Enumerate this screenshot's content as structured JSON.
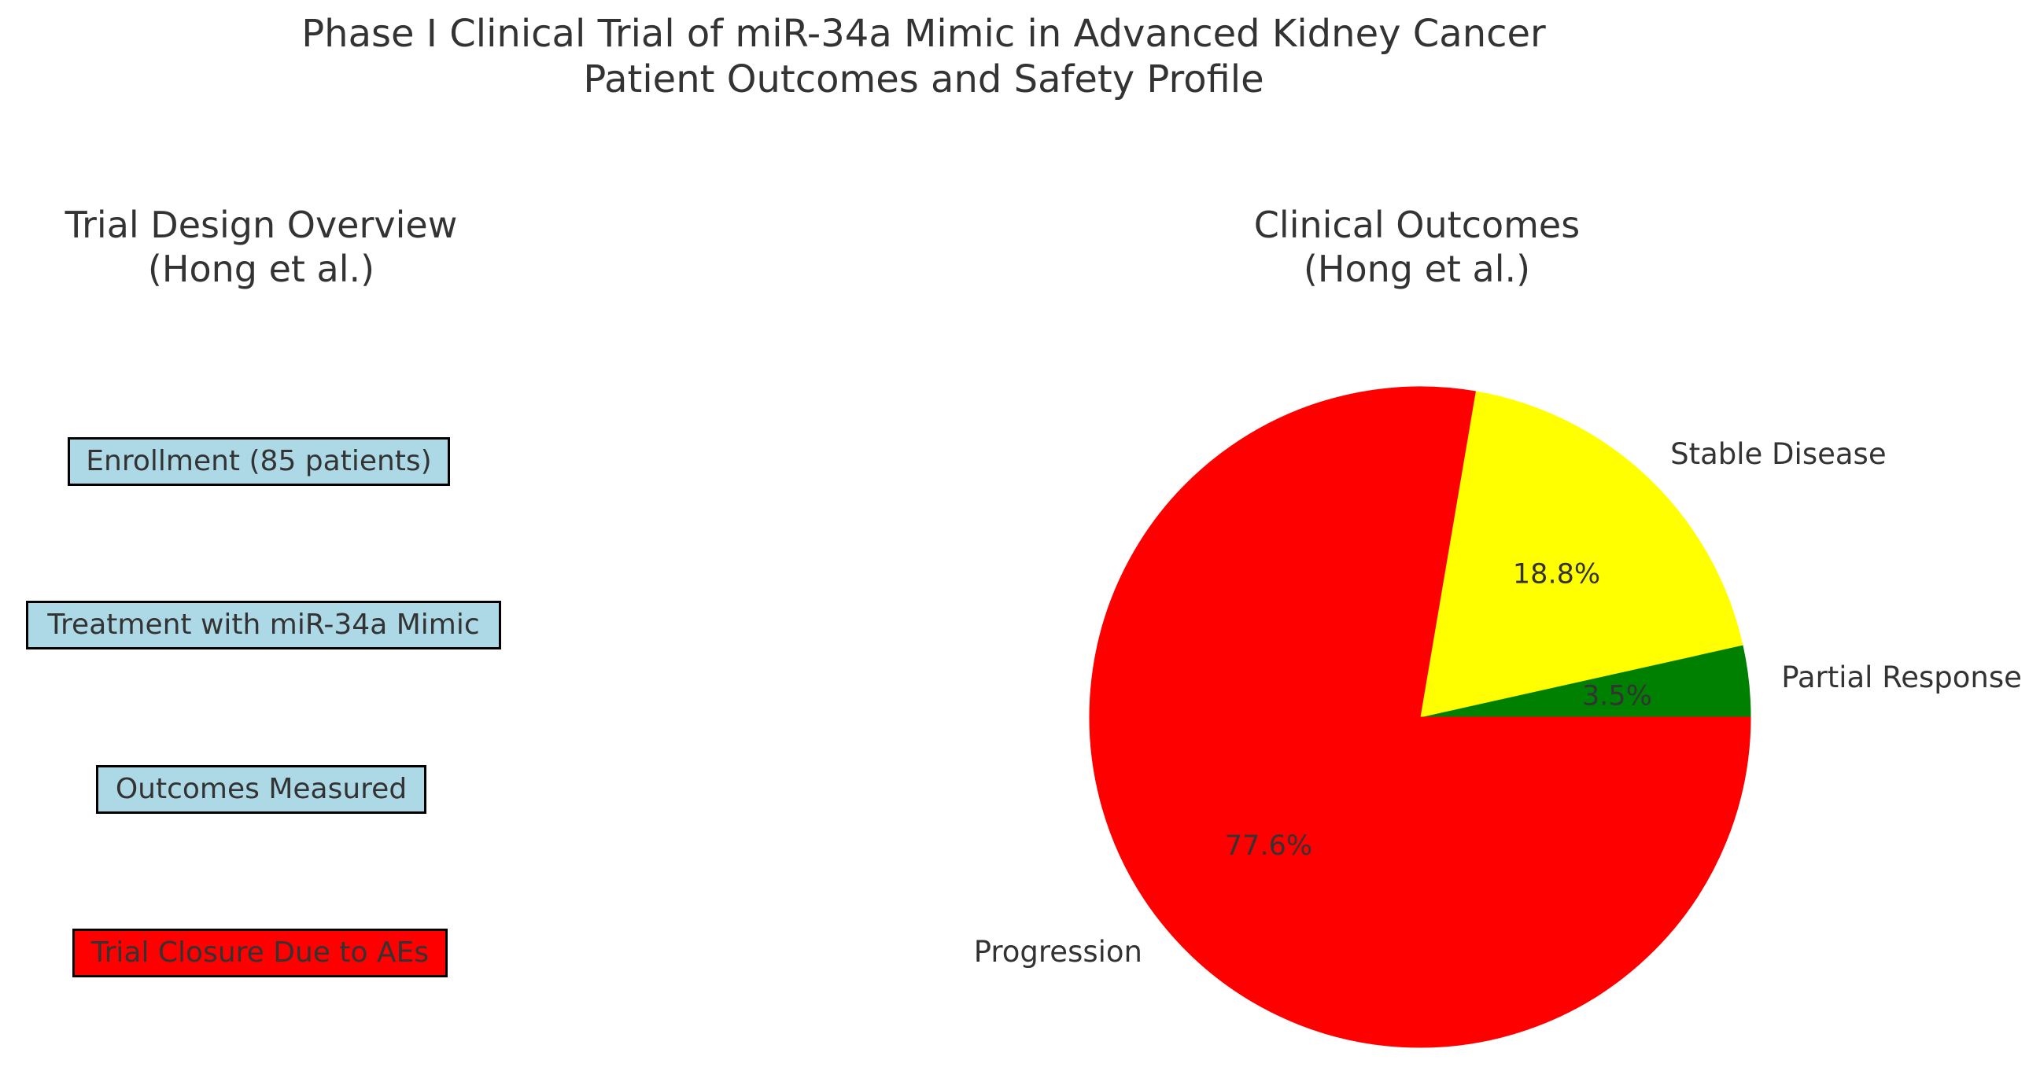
{
  "figure": {
    "title_line1": "Phase I Clinical Trial of miR-34a Mimic in Advanced Kidney Cancer",
    "title_line2": "Patient Outcomes and Safety Profile"
  },
  "flowchart": {
    "title_line1": "Trial Design Overview",
    "title_line2": "(Hong et al.)",
    "steps": [
      {
        "label": "Enrollment (85 patients)",
        "fill": "#add8e6"
      },
      {
        "label": "Treatment with miR-34a Mimic",
        "fill": "#add8e6"
      },
      {
        "label": "Outcomes Measured",
        "fill": "#add8e6"
      },
      {
        "label": "Trial Closure Due to AEs",
        "fill": "#ff0000"
      }
    ],
    "box_border_color": "#000000"
  },
  "pie_panel": {
    "title_line1": "Clinical Outcomes",
    "title_line2": "(Hong et al.)"
  },
  "chart_data": {
    "type": "pie",
    "title": "Clinical Outcomes (Hong et al.)",
    "slices": [
      {
        "label": "Partial Response",
        "value": 3.5,
        "pct_label": "3.5%",
        "color": "#008000"
      },
      {
        "label": "Stable Disease",
        "value": 18.8,
        "pct_label": "18.8%",
        "color": "#ffff00"
      },
      {
        "label": "Progression",
        "value": 77.6,
        "pct_label": "77.6%",
        "color": "#ff0000"
      }
    ],
    "start_angle_deg": 0,
    "direction": "counterclockwise",
    "label_distance": 1.1,
    "pct_distance": 0.6,
    "legend": "none",
    "text_color": "#333333"
  }
}
